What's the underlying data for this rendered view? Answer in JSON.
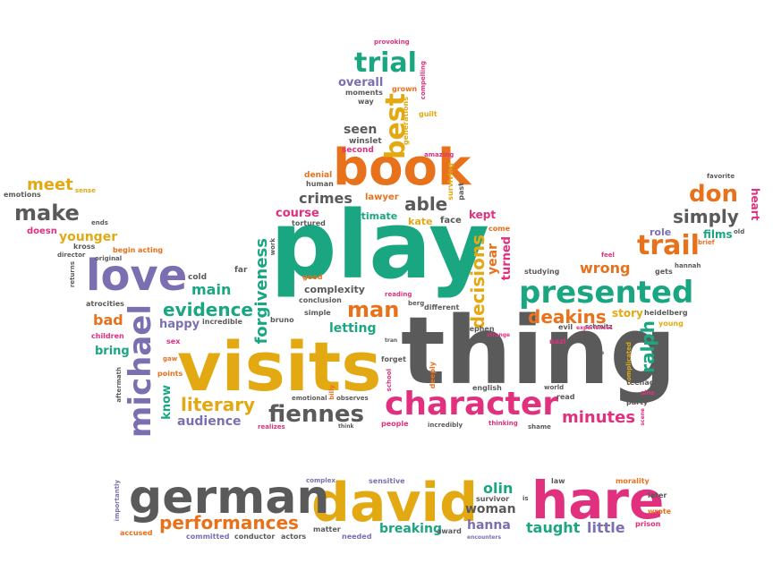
{
  "palette": {
    "orange": "#e8711c",
    "green": "#1ba682",
    "gold": "#e2a913",
    "gray": "#5a5a5a",
    "pink": "#e0307e",
    "purple": "#7b6fb2"
  },
  "words": {
    "play": "play",
    "thing": "thing",
    "visits": "visits",
    "book": "book",
    "david": "david",
    "german": "german",
    "hare": "hare",
    "love": "love",
    "presented": "presented",
    "character": "character",
    "michael": "michael",
    "trial": "trial",
    "best": "best",
    "trail": "trail",
    "fiennes": "fiennes",
    "performances": "performances",
    "don": "don",
    "make": "make",
    "meet": "meet",
    "simply": "simply",
    "evidence": "evidence",
    "literary": "literary",
    "man": "man",
    "deakins": "deakins",
    "forgiveness": "forgiveness",
    "decisions": "decisions",
    "minutes": "minutes",
    "ralph": "ralph",
    "wrong": "wrong",
    "crimes": "crimes",
    "able": "able",
    "seen": "seen",
    "overall": "overall",
    "younger": "younger",
    "woman": "woman",
    "hanna_bottom": "hanna",
    "taught": "taught",
    "little": "little",
    "olin": "olin",
    "breaking": "breaking",
    "audience": "audience",
    "main": "main",
    "happy": "happy",
    "bad": "bad",
    "bring": "bring",
    "know": "know",
    "letting": "letting",
    "course": "course",
    "complexity": "complexity",
    "year": "year",
    "turned": "turned",
    "kept": "kept",
    "story": "story",
    "role": "role",
    "films": "films",
    "heart": "heart",
    "intimate": "intimate",
    "kate": "kate",
    "face": "face",
    "lawyer": "lawyer",
    "winslet": "winslet",
    "second": "second",
    "denial": "denial",
    "human": "human",
    "tortured": "tortured",
    "generations": "generations",
    "grown": "grown",
    "guilt": "guilt",
    "amazing": "amazing",
    "surviving": "surviving",
    "past": "past",
    "moments": "moments",
    "way": "way",
    "provoking": "provoking",
    "compelling": "compelling",
    "emotions": "emotions",
    "sense": "sense",
    "doesn": "doesn",
    "ends": "ends",
    "kross": "kross",
    "begin": "begin",
    "acting": "acting",
    "director": "director",
    "original": "original",
    "returns": "returns",
    "cold": "cold",
    "far": "far",
    "work": "work",
    "atrocities": "atrocities",
    "children": "children",
    "incredible": "incredible",
    "sex": "sex",
    "gaw": "gaw",
    "points": "points",
    "aftermath": "aftermath",
    "emotional": "emotional",
    "realizes": "realizes",
    "billy": "billy",
    "observes": "observes",
    "think": "think",
    "bruno": "bruno",
    "simple": "simple",
    "conclusion": "conclusion",
    "good": "good",
    "reading": "reading",
    "berg": "berg",
    "different": "different",
    "tran": "tran",
    "forget": "forget",
    "school": "school",
    "deeply": "deeply",
    "people": "people",
    "incredibly": "incredibly",
    "stephen": "stephen",
    "strange": "strange",
    "english": "english",
    "thinking": "thinking",
    "shame": "shame",
    "world": "world",
    "read": "read",
    "evil": "evil",
    "nazi": "nazi",
    "studying": "studying",
    "come": "come",
    "feel": "feel",
    "schmitz": "schmitz",
    "experiences": "experiences",
    "heidelberg": "heidelberg",
    "young": "young",
    "gets": "gets",
    "hannah": "hannah",
    "brief": "brief",
    "old": "old",
    "favorite": "favorite",
    "complicated": "complicated",
    "regan": "regan",
    "teenager": "teenager",
    "sins": "sins",
    "party": "party",
    "fume": "fume",
    "scene": "scene",
    "importantly": "importantly",
    "accused": "accused",
    "committed": "committed",
    "conductor": "conductor",
    "actors": "actors",
    "complex": "complex",
    "matter": "matter",
    "needed": "needed",
    "sensitive": "sensitive",
    "survivor": "survivor",
    "award": "award",
    "encounters": "encounters",
    "is": "is",
    "law": "law",
    "morality": "morality",
    "later": "later",
    "wrote": "wrote",
    "prison": "prison"
  }
}
